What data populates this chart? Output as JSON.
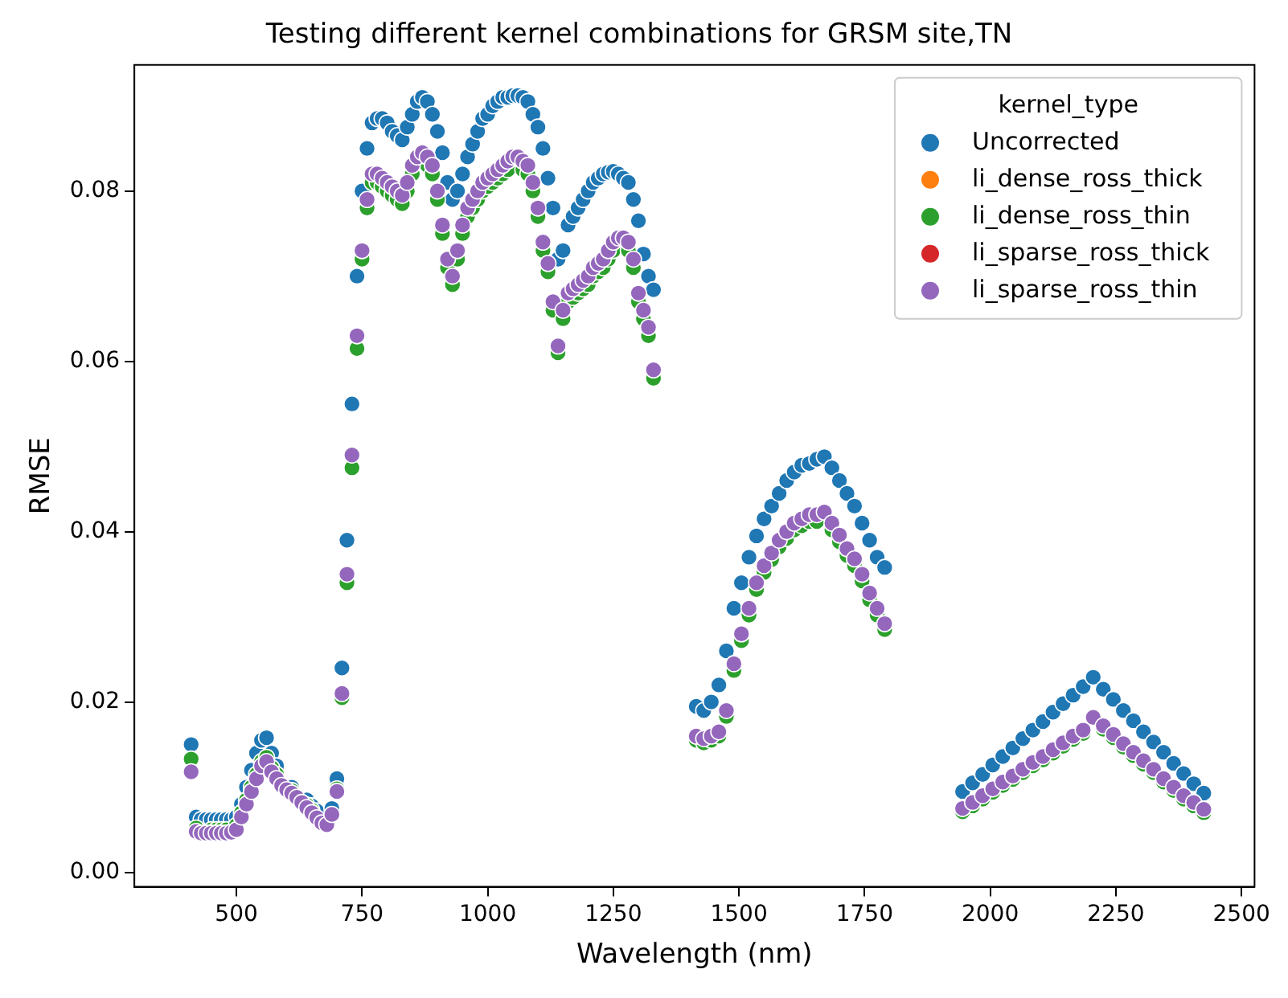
{
  "chart_data": {
    "type": "scatter",
    "title": "Testing different kernel combinations for GRSM site,TN",
    "xlabel": "Wavelength (nm)",
    "ylabel": "RMSE",
    "legend_title": "kernel_type",
    "legend": "top right",
    "marker": "circle",
    "grid": false,
    "xlim": [
      297,
      2526
    ],
    "xticks": [
      500,
      750,
      1000,
      1250,
      1500,
      1750,
      2000,
      2250,
      2500
    ],
    "ylim": [
      -0.0017,
      0.0948
    ],
    "yticks": [
      {
        "value": 0,
        "label": "0.00"
      },
      {
        "value": 0.02,
        "label": "0.02"
      },
      {
        "value": 0.04,
        "label": "0.04"
      },
      {
        "value": 0.06,
        "label": "0.06"
      },
      {
        "value": 0.08,
        "label": "0.08"
      }
    ],
    "x": [
      410,
      420,
      430,
      440,
      450,
      460,
      470,
      480,
      490,
      500,
      510,
      520,
      530,
      540,
      550,
      560,
      570,
      580,
      590,
      600,
      610,
      620,
      630,
      640,
      650,
      660,
      670,
      680,
      690,
      700,
      710,
      720,
      730,
      740,
      750,
      760,
      770,
      780,
      790,
      800,
      810,
      820,
      830,
      840,
      850,
      860,
      870,
      880,
      890,
      900,
      910,
      920,
      930,
      940,
      950,
      960,
      970,
      980,
      990,
      1000,
      1010,
      1020,
      1030,
      1040,
      1050,
      1060,
      1070,
      1080,
      1090,
      1100,
      1110,
      1120,
      1130,
      1140,
      1150,
      1160,
      1170,
      1180,
      1190,
      1200,
      1210,
      1220,
      1230,
      1240,
      1250,
      1260,
      1270,
      1280,
      1290,
      1300,
      1310,
      1320,
      1330,
      1415,
      1430,
      1445,
      1460,
      1475,
      1490,
      1505,
      1520,
      1535,
      1550,
      1565,
      1580,
      1595,
      1610,
      1625,
      1640,
      1655,
      1670,
      1685,
      1700,
      1715,
      1730,
      1745,
      1760,
      1775,
      1790,
      1945,
      1965,
      1985,
      2005,
      2025,
      2045,
      2065,
      2085,
      2105,
      2125,
      2145,
      2165,
      2185,
      2205,
      2225,
      2245,
      2265,
      2285,
      2305,
      2325,
      2345,
      2365,
      2385,
      2405,
      2425
    ],
    "series": [
      {
        "name": "Uncorrected",
        "color": "#1f77b4",
        "values": [
          0.015,
          0.0065,
          0.0062,
          0.0062,
          0.0062,
          0.0062,
          0.0062,
          0.0062,
          0.0062,
          0.0065,
          0.008,
          0.01,
          0.012,
          0.014,
          0.0155,
          0.0158,
          0.014,
          0.0125,
          null,
          null,
          0.01,
          null,
          null,
          0.0085,
          0.0078,
          0.0072,
          null,
          null,
          0.0075,
          0.011,
          0.024,
          0.039,
          0.055,
          0.07,
          0.08,
          0.085,
          0.088,
          0.0885,
          0.0885,
          0.088,
          0.087,
          0.0865,
          0.086,
          0.0875,
          0.089,
          0.0905,
          0.091,
          0.0905,
          0.089,
          0.087,
          0.0845,
          0.081,
          0.079,
          0.08,
          0.082,
          0.084,
          0.0855,
          0.087,
          0.0885,
          0.089,
          0.09,
          0.0905,
          0.091,
          0.091,
          0.0912,
          0.0912,
          0.091,
          0.0905,
          0.089,
          0.0875,
          0.085,
          0.0815,
          0.078,
          0.072,
          0.073,
          0.076,
          0.077,
          0.078,
          0.079,
          0.08,
          0.081,
          0.0815,
          0.082,
          0.0822,
          0.0823,
          0.082,
          0.0815,
          0.081,
          0.079,
          0.0765,
          0.0726,
          0.07,
          0.0684,
          0.0195,
          0.019,
          0.02,
          0.022,
          0.026,
          0.031,
          0.034,
          0.037,
          0.0395,
          0.0415,
          0.043,
          0.0445,
          0.046,
          0.047,
          0.0478,
          0.048,
          0.0485,
          0.0488,
          0.0475,
          0.046,
          0.0445,
          0.043,
          0.041,
          0.039,
          0.037,
          0.0358,
          0.0095,
          0.0105,
          0.0115,
          0.0126,
          0.0136,
          0.0146,
          0.0157,
          0.0167,
          0.0177,
          0.0188,
          0.0198,
          0.0208,
          0.0218,
          0.0229,
          0.0215,
          0.0203,
          0.019,
          0.0178,
          0.0165,
          0.0153,
          0.0141,
          0.0128,
          0.0116,
          0.0104,
          0.0093
        ]
      },
      {
        "name": "li_dense_ross_thick",
        "color": "#ff7f0e",
        "values": [
          null,
          null,
          null,
          null,
          null,
          null,
          null,
          null,
          null,
          null,
          null,
          null,
          null,
          null,
          null,
          null,
          null,
          null,
          null,
          null,
          null,
          null,
          null,
          null,
          null,
          null,
          null,
          null,
          null,
          null,
          null,
          null,
          null,
          null,
          null,
          null,
          null,
          null,
          null,
          null,
          null,
          null,
          null,
          null,
          null,
          null,
          null,
          null,
          null,
          null,
          null,
          null,
          null,
          null,
          null,
          null,
          null,
          null,
          null,
          null,
          null,
          null,
          null,
          null,
          null,
          null,
          null,
          null,
          null,
          null,
          null,
          null,
          null,
          null,
          null,
          null,
          null,
          null,
          null,
          null,
          null,
          null,
          null,
          null,
          null,
          null,
          null,
          null,
          null,
          null,
          null,
          null,
          null,
          null,
          null,
          null,
          null,
          null,
          null,
          null,
          null,
          null,
          null,
          null,
          null,
          null,
          null,
          null,
          null,
          null,
          null,
          null,
          null,
          null,
          null,
          null,
          null,
          null,
          null,
          null,
          null,
          null,
          null,
          null,
          null,
          null,
          null,
          null,
          null,
          null,
          null,
          null,
          null,
          null,
          null,
          null,
          null,
          null,
          null,
          null,
          null,
          null,
          null,
          null
        ]
      },
      {
        "name": "li_dense_ross_thin",
        "color": "#2ca02c",
        "values": [
          0.0133,
          0.0052,
          null,
          null,
          0.005,
          0.005,
          0.005,
          0.005,
          null,
          0.0055,
          0.007,
          0.0085,
          0.01,
          0.0115,
          0.013,
          0.0135,
          0.0123,
          0.0115,
          null,
          null,
          0.0096,
          null,
          null,
          0.0079,
          0.0073,
          null,
          null,
          null,
          null,
          0.0098,
          0.0205,
          0.034,
          0.0475,
          0.0615,
          0.072,
          0.078,
          0.081,
          0.081,
          0.0805,
          0.08,
          0.0795,
          0.079,
          0.0785,
          0.08,
          0.082,
          null,
          null,
          0.083,
          0.082,
          0.079,
          0.075,
          0.071,
          0.069,
          0.072,
          0.075,
          0.077,
          0.078,
          0.079,
          0.08,
          0.0805,
          0.081,
          0.0815,
          0.082,
          0.0825,
          null,
          null,
          0.0825,
          0.082,
          0.08,
          0.077,
          0.073,
          0.0705,
          0.066,
          0.061,
          0.065,
          0.067,
          0.0675,
          0.068,
          0.0685,
          0.069,
          0.07,
          0.0705,
          0.071,
          0.072,
          0.073,
          null,
          null,
          0.073,
          0.071,
          0.067,
          0.065,
          0.063,
          0.058,
          0.0155,
          0.0152,
          0.0155,
          0.016,
          0.0183,
          0.0237,
          0.0272,
          0.0302,
          0.0332,
          0.0352,
          0.0367,
          0.0382,
          0.0392,
          0.0402,
          0.0407,
          0.0412,
          0.0412,
          null,
          0.0402,
          0.0388,
          0.0372,
          0.036,
          0.0342,
          0.032,
          0.0302,
          0.0285,
          0.0071,
          0.0078,
          0.0086,
          0.0094,
          0.0102,
          0.0109,
          0.0117,
          0.0125,
          0.0132,
          0.014,
          0.0148,
          0.0156,
          0.0163,
          null,
          0.0168,
          0.0158,
          0.0147,
          0.0137,
          0.0127,
          0.0117,
          0.0106,
          0.0096,
          0.0086,
          0.0078,
          0.007
        ]
      },
      {
        "name": "li_sparse_ross_thick",
        "color": "#d62728",
        "values": [
          null,
          null,
          null,
          null,
          null,
          null,
          null,
          null,
          null,
          null,
          null,
          null,
          null,
          null,
          null,
          null,
          null,
          null,
          null,
          null,
          null,
          null,
          null,
          null,
          null,
          null,
          null,
          null,
          null,
          null,
          null,
          null,
          null,
          null,
          null,
          null,
          null,
          null,
          null,
          null,
          null,
          null,
          null,
          null,
          null,
          null,
          null,
          null,
          null,
          null,
          null,
          null,
          null,
          null,
          null,
          null,
          null,
          null,
          null,
          null,
          null,
          null,
          null,
          null,
          null,
          null,
          null,
          null,
          null,
          null,
          null,
          null,
          null,
          null,
          null,
          null,
          null,
          null,
          null,
          null,
          null,
          null,
          null,
          null,
          null,
          null,
          null,
          null,
          null,
          null,
          null,
          null,
          null,
          null,
          null,
          null,
          null,
          null,
          null,
          null,
          null,
          null,
          null,
          null,
          null,
          null,
          null,
          null,
          null,
          null,
          null,
          null,
          null,
          null,
          null,
          null,
          null,
          null,
          null,
          null,
          null,
          null,
          null,
          null,
          null,
          null,
          null,
          null,
          null,
          null,
          null,
          null,
          null,
          null,
          null,
          null,
          null,
          null,
          null,
          null,
          null,
          null,
          null,
          null
        ]
      },
      {
        "name": "li_sparse_ross_thin",
        "color": "#9467bd",
        "values": [
          0.0118,
          0.0048,
          0.0046,
          0.0046,
          0.0046,
          0.0046,
          0.0046,
          0.0046,
          0.0047,
          0.005,
          0.0065,
          0.008,
          0.0095,
          0.011,
          0.0125,
          0.013,
          0.0118,
          0.011,
          0.0102,
          0.0097,
          0.0093,
          0.0088,
          0.0082,
          0.0076,
          0.007,
          0.0064,
          0.0058,
          0.0056,
          0.0068,
          0.0095,
          0.021,
          0.035,
          0.049,
          0.063,
          0.073,
          0.079,
          0.082,
          0.082,
          0.0815,
          0.081,
          0.0805,
          0.08,
          0.0795,
          0.081,
          0.083,
          0.084,
          0.0845,
          0.084,
          0.083,
          0.08,
          0.076,
          0.072,
          0.07,
          0.073,
          0.076,
          0.078,
          0.079,
          0.08,
          0.081,
          0.0815,
          0.082,
          0.0825,
          0.083,
          0.0835,
          0.084,
          0.084,
          0.0835,
          0.083,
          0.081,
          0.078,
          0.074,
          0.0715,
          0.067,
          0.0618,
          0.066,
          0.068,
          0.0685,
          0.069,
          0.0695,
          0.07,
          0.071,
          0.0715,
          0.072,
          0.073,
          0.074,
          0.0745,
          0.0745,
          0.074,
          0.072,
          0.068,
          0.066,
          0.064,
          0.059,
          0.016,
          0.0157,
          0.016,
          0.0165,
          0.019,
          0.0245,
          0.028,
          0.031,
          0.034,
          0.036,
          0.0375,
          0.039,
          0.04,
          0.041,
          0.0415,
          0.042,
          0.042,
          0.0423,
          0.041,
          0.0396,
          0.038,
          0.0368,
          0.035,
          0.0328,
          0.031,
          0.0292,
          0.0075,
          0.0082,
          0.009,
          0.0098,
          0.0106,
          0.0113,
          0.0121,
          0.0129,
          0.0136,
          0.0144,
          0.0152,
          0.016,
          0.0167,
          0.0182,
          0.0172,
          0.0162,
          0.0151,
          0.0141,
          0.0131,
          0.0121,
          0.011,
          0.01,
          0.009,
          0.0082,
          0.0074
        ]
      }
    ]
  }
}
